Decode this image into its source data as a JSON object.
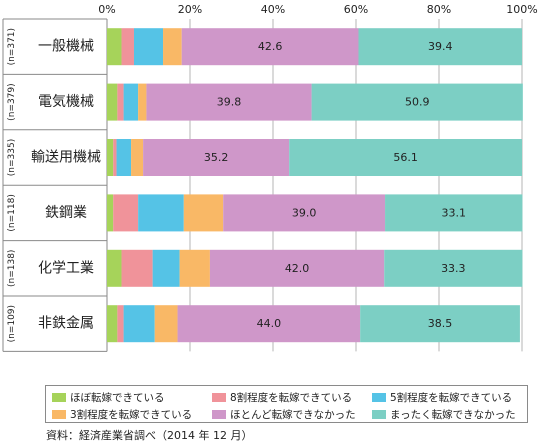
{
  "chart_data": {
    "type": "bar",
    "orientation": "horizontal",
    "stacked": true,
    "xlim": [
      0,
      100
    ],
    "x_ticks": [
      "0%",
      "20%",
      "40%",
      "60%",
      "80%",
      "100%"
    ],
    "grid": true,
    "categories": [
      "一般機械",
      "電気機械",
      "輸送用機械",
      "鉄鋼業",
      "化学工業",
      "非鉄金属"
    ],
    "n_labels": [
      "(n=371)",
      "(n=379)",
      "(n=335)",
      "(n=118)",
      "(n=138)",
      "(n=109)"
    ],
    "series": [
      {
        "name": "ほぼ転嫁できている",
        "color": "#a6d35a",
        "values": [
          3.5,
          2.5,
          1.5,
          1.5,
          3.5,
          2.5
        ]
      },
      {
        "name": "8割程度を転嫁できている",
        "color": "#f0939a",
        "values": [
          3.0,
          1.5,
          0.8,
          6.0,
          7.5,
          1.5
        ]
      },
      {
        "name": "5割程度を転嫁できている",
        "color": "#55c3e6",
        "values": [
          7.0,
          3.5,
          3.5,
          11.0,
          6.5,
          7.5
        ]
      },
      {
        "name": "3割程度を転嫁できている",
        "color": "#f9b866",
        "values": [
          4.5,
          2.0,
          2.9,
          9.5,
          7.3,
          5.5
        ]
      },
      {
        "name": "ほとんど転嫁できなかった",
        "color": "#cf97c9",
        "values": [
          42.6,
          39.8,
          35.2,
          39.0,
          42.0,
          44.0
        ]
      },
      {
        "name": "まったく転嫁できなかった",
        "color": "#7ccfc4",
        "values": [
          39.4,
          50.9,
          56.1,
          33.1,
          33.3,
          38.5
        ]
      }
    ],
    "data_labels": [
      [
        "42.6",
        "39.4"
      ],
      [
        "39.8",
        "50.9"
      ],
      [
        "35.2",
        "56.1"
      ],
      [
        "39.0",
        "33.1"
      ],
      [
        "42.0",
        "33.3"
      ],
      [
        "44.0",
        "38.5"
      ]
    ],
    "legend_position": "bottom"
  },
  "source": "資料：経済産業省調べ（2014 年 12 月）"
}
